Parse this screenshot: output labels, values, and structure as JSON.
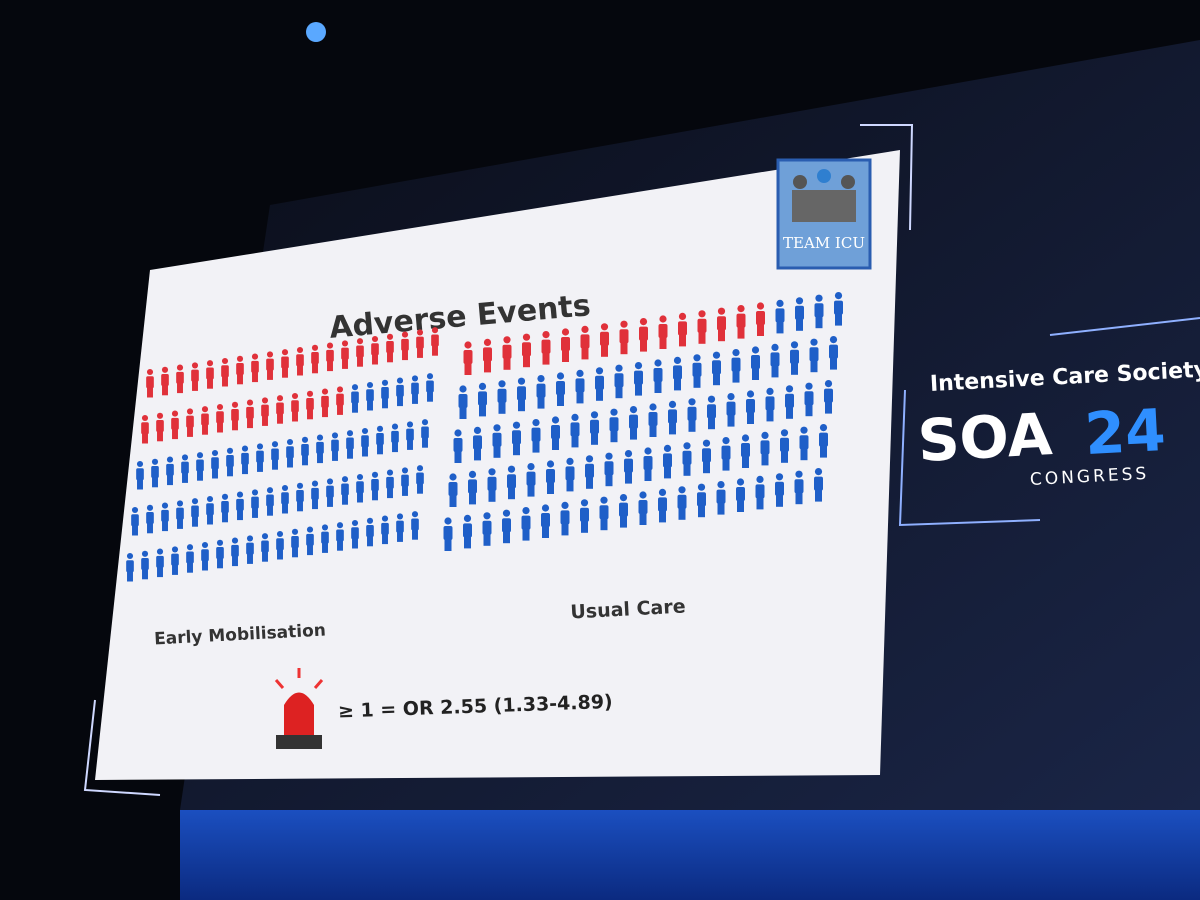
{
  "slide": {
    "title": "Adverse Events",
    "badge": "TEAM ICU",
    "groups": [
      {
        "label": "Early Mobilisation",
        "total": 100,
        "events": 34
      },
      {
        "label": "Usual Care",
        "total": 100,
        "events": 16
      }
    ],
    "result": "≥ 1 = OR 2.55 (1.33-4.89)"
  },
  "logo": {
    "org": "Intensive Care Society",
    "name": "SOA",
    "year": "24",
    "sub": "CONGRESS"
  }
}
